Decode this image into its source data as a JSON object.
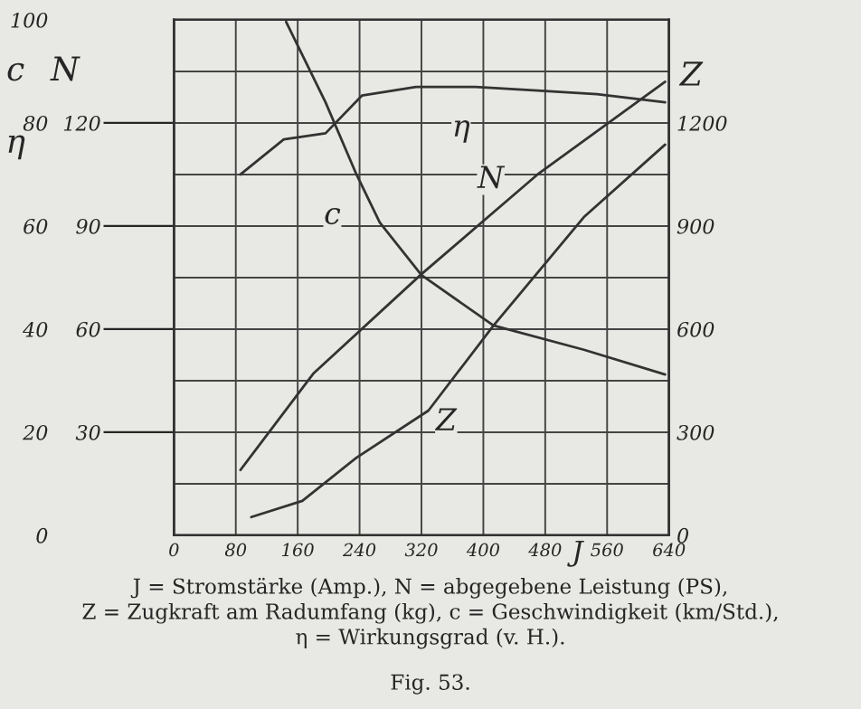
{
  "chart_data": {
    "type": "line",
    "xlabel": "J",
    "ylabel": "c",
    "y2label": "N",
    "y3label": "Z",
    "xlim": [
      0,
      640
    ],
    "xticks": [
      0,
      80,
      160,
      240,
      320,
      400,
      480,
      560,
      640
    ],
    "ylim": [
      0,
      100
    ],
    "yticks": [
      0,
      {
        "value": 10,
        "label": null
      },
      20,
      {
        "value": 30,
        "label": null
      },
      40,
      {
        "value": 50,
        "label": null
      },
      60,
      {
        "value": 70,
        "label": null
      },
      80,
      {
        "value": 90,
        "label": null
      },
      100
    ],
    "y2lim": [
      0,
      150
    ],
    "y2ticks": [
      30,
      60,
      90,
      120
    ],
    "y3lim": [
      0,
      1500
    ],
    "y3ticks": [
      0,
      300,
      600,
      900,
      1200
    ],
    "grid": true,
    "legend": false,
    "marker": "none",
    "line_style": "solid",
    "series": [
      {
        "name": "η",
        "color": "#333333",
        "x": [
          86,
          142,
          196,
          243,
          313,
          390,
          470,
          547,
          635
        ],
        "values": [
          70,
          76.8,
          78,
          85.3,
          87,
          87,
          86.3,
          85.6,
          84
        ]
      },
      {
        "name": "c",
        "color": "#333333",
        "x": [
          145,
          196,
          236,
          266,
          320,
          413,
          530,
          635
        ],
        "values": [
          99.6,
          84,
          70,
          60.7,
          50.5,
          40.7,
          36,
          31.2
        ]
      },
      {
        "name": "N",
        "color": "#333333",
        "axis": "y2",
        "x": [
          86,
          180,
          320,
          470,
          635
        ],
        "values": [
          19,
          47,
          76,
          105,
          132
        ]
      },
      {
        "name": "Z",
        "color": "#333333",
        "axis": "y3",
        "x": [
          100,
          166,
          236,
          329,
          413,
          530,
          635
        ],
        "values": [
          53,
          100,
          226,
          363,
          610,
          926,
          1137
        ]
      }
    ],
    "annotations": [
      "η",
      "J = Stromstärke (Amp.), N = abgegebene Leistung (PS),\nZ = Zugkraft am Radumfang (kg), c = Geschwindigkeit (km/Std.),\nη = Wirkungsgrad (v. H.).",
      "Fig. 53."
    ]
  }
}
